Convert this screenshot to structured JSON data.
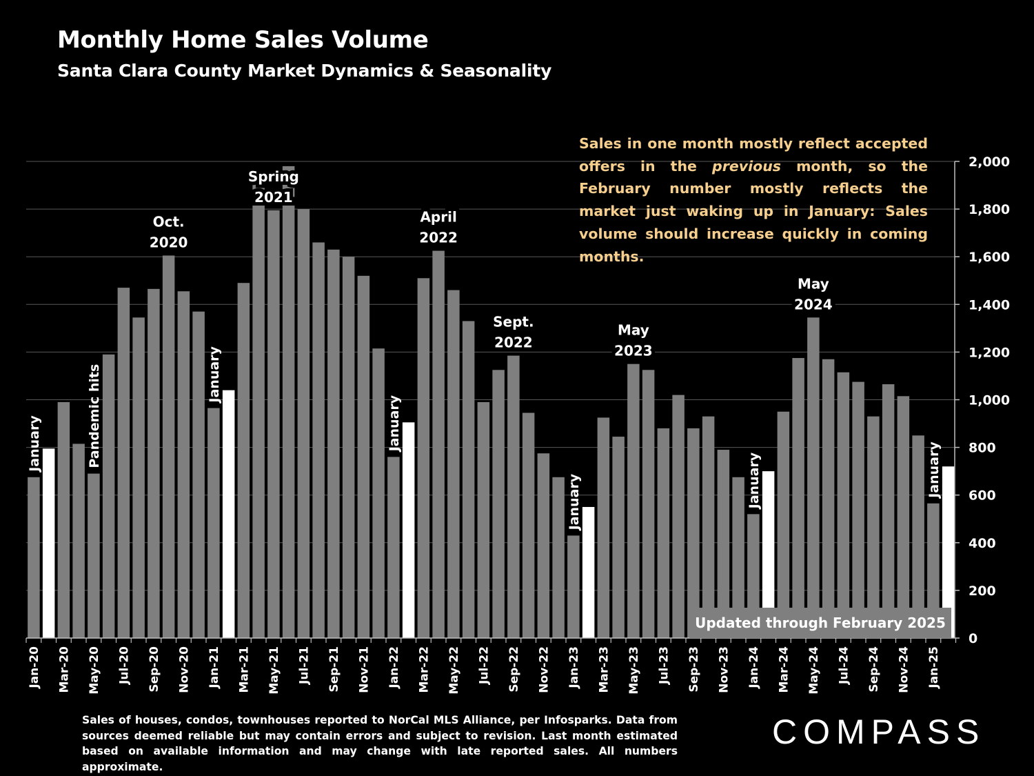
{
  "header": {
    "title": "Monthly Home Sales Volume",
    "subtitle": "Santa Clara County Market Dynamics & Seasonality"
  },
  "note": {
    "part1": "Sales in one month mostly reflect accepted offers in the ",
    "emphasis": "previous",
    "part2": " month, so the February number mostly reflects the market just waking up in January:  Sales volume should increase quickly in coming months."
  },
  "updated_label": "Updated through February 2025",
  "footnote": "Sales of houses, condos, townhouses reported to NorCal MLS Alliance, per Infosparks. Data from sources deemed reliable but may contain errors and subject to revision. Last month estimated based on available information and may change with late reported sales. All numbers approximate.",
  "logo": "COMPASS",
  "colors": {
    "bar": "#7f7f7f",
    "highlight": "#ffffff",
    "note": "#f6cf8f",
    "grid": "#595959"
  },
  "chart_data": {
    "type": "bar",
    "ylim": [
      0,
      2000
    ],
    "yticks": [
      0,
      200,
      400,
      600,
      800,
      1000,
      1200,
      1400,
      1600,
      1800,
      2000
    ],
    "ytick_labels": [
      "0",
      "200",
      "400",
      "600",
      "800",
      "1,000",
      "1,200",
      "1,400",
      "1,600",
      "1,800",
      "2,000"
    ],
    "y_axis_side": "right",
    "grid": true,
    "categories": [
      "Jan-20",
      "Feb-20",
      "Mar-20",
      "Apr-20",
      "May-20",
      "Jun-20",
      "Jul-20",
      "Aug-20",
      "Sep-20",
      "Oct-20",
      "Nov-20",
      "Dec-20",
      "Jan-21",
      "Feb-21",
      "Mar-21",
      "Apr-21",
      "May-21",
      "Jun-21",
      "Jul-21",
      "Aug-21",
      "Sep-21",
      "Oct-21",
      "Nov-21",
      "Dec-21",
      "Jan-22",
      "Feb-22",
      "Mar-22",
      "Apr-22",
      "May-22",
      "Jun-22",
      "Jul-22",
      "Aug-22",
      "Sep-22",
      "Oct-22",
      "Nov-22",
      "Dec-22",
      "Jan-23",
      "Feb-23",
      "Mar-23",
      "Apr-23",
      "May-23",
      "Jun-23",
      "Jul-23",
      "Aug-23",
      "Sep-23",
      "Oct-23",
      "Nov-23",
      "Dec-23",
      "Jan-24",
      "Feb-24",
      "Mar-24",
      "Apr-24",
      "May-24",
      "Jun-24",
      "Jul-24",
      "Aug-24",
      "Sep-24",
      "Oct-24",
      "Nov-24",
      "Dec-24",
      "Jan-25",
      "Feb-25"
    ],
    "x_tick_labels": [
      "Jan-20",
      "",
      "Mar-20",
      "",
      "May-20",
      "",
      "Jul-20",
      "",
      "Sep-20",
      "",
      "Nov-20",
      "",
      "Jan-21",
      "",
      "Mar-21",
      "",
      "May-21",
      "",
      "Jul-21",
      "",
      "Sep-21",
      "",
      "Nov-21",
      "",
      "Jan-22",
      "",
      "Mar-22",
      "",
      "May-22",
      "",
      "Jul-22",
      "",
      "Sep-22",
      "",
      "Nov-22",
      "",
      "Jan-23",
      "",
      "Mar-23",
      "",
      "May-23",
      "",
      "Jul-23",
      "",
      "Sep-23",
      "",
      "Nov-23",
      "",
      "Jan-24",
      "",
      "Mar-24",
      "",
      "May-24",
      "",
      "Jul-24",
      "",
      "Sep-24",
      "",
      "Nov-24",
      "",
      "Jan-25",
      ""
    ],
    "values": [
      675,
      795,
      990,
      815,
      690,
      1190,
      1470,
      1345,
      1465,
      1605,
      1455,
      1370,
      965,
      1040,
      1490,
      1950,
      1795,
      1980,
      1800,
      1660,
      1630,
      1600,
      1520,
      1215,
      760,
      905,
      1510,
      1625,
      1460,
      1330,
      990,
      1125,
      1185,
      945,
      775,
      675,
      430,
      550,
      925,
      845,
      1150,
      1125,
      880,
      1020,
      880,
      930,
      790,
      675,
      520,
      700,
      950,
      1175,
      1345,
      1170,
      1115,
      1075,
      930,
      1065,
      1015,
      850,
      565,
      720
    ],
    "highlight_indices": [
      1,
      13,
      25,
      37,
      49,
      61
    ],
    "annotations": [
      {
        "index": 0,
        "text": "January",
        "rotated": true
      },
      {
        "index": 4,
        "text": "Pandemic hits",
        "rotated": true
      },
      {
        "index": 12,
        "text": "January",
        "rotated": true
      },
      {
        "index": 24,
        "text": "January",
        "rotated": true
      },
      {
        "index": 36,
        "text": "January",
        "rotated": true
      },
      {
        "index": 48,
        "text": "January",
        "rotated": true
      },
      {
        "index": 60,
        "text": "January",
        "rotated": true
      },
      {
        "index": 9,
        "text": [
          "Oct.",
          "2020"
        ],
        "rotated": false
      },
      {
        "index": 16,
        "text": [
          "Spring",
          "2021"
        ],
        "rotated": false
      },
      {
        "index": 27,
        "text": [
          "April",
          "2022"
        ],
        "rotated": false
      },
      {
        "index": 32,
        "text": [
          "Sept.",
          "2022"
        ],
        "rotated": false
      },
      {
        "index": 40,
        "text": [
          "May",
          "2023"
        ],
        "rotated": false
      },
      {
        "index": 52,
        "text": [
          "May",
          "2024"
        ],
        "rotated": false
      }
    ]
  }
}
